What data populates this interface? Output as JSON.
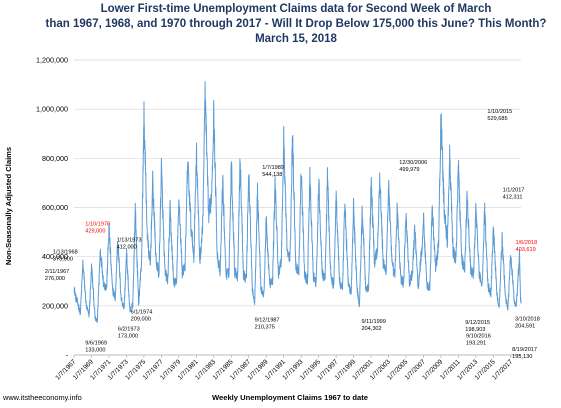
{
  "chart_data": {
    "type": "line",
    "title": [
      "Lower First-time Unemployment Claims data for Second Week of March",
      "than 1967, 1968, and 1970 through 2017 - Will It Drop Below 175,000 this June? This Month?",
      "March 15, 2018"
    ],
    "xlabel": "Weekly Unemployment Claims 1967 to date",
    "ylabel": "Non-Seasonally Adjusted Claims",
    "ylim": [
      0,
      1200000
    ],
    "yticks": [
      "-",
      "200,000",
      "400,000",
      "600,000",
      "800,000",
      "1,000,000",
      "1,200,000"
    ],
    "xticks": [
      "1/7/1967",
      "1/7/1969",
      "1/7/1971",
      "1/7/1973",
      "1/7/1975",
      "1/7/1977",
      "1/7/1979",
      "1/7/1981",
      "1/7/1983",
      "1/7/1985",
      "1/7/1987",
      "1/7/1989",
      "1/7/1991",
      "1/7/1993",
      "1/7/1995",
      "1/7/1997",
      "1/7/1999",
      "1/7/2001",
      "1/7/2003",
      "1/7/2005",
      "1/7/2007",
      "1/7/2009",
      "1/7/2011",
      "1/7/2013",
      "1/7/2015",
      "1/7/2017"
    ],
    "x_start": "1967-01-07",
    "x_end": "2018-03-10",
    "series_color": "#5b9bd5",
    "grid": "horizontal",
    "legend": "none",
    "annual_profile": [
      {
        "x": "1967-01-07",
        "y": 276000
      },
      {
        "x": "1967-04-01",
        "y": 230000
      },
      {
        "x": "1967-07-01",
        "y": 205000
      },
      {
        "x": "1967-10-01",
        "y": 170000
      },
      {
        "x": "1968-01-13",
        "y": 373000
      },
      {
        "x": "1968-06-01",
        "y": 200000
      },
      {
        "x": "1968-10-01",
        "y": 160000
      },
      {
        "x": "1969-01-11",
        "y": 360000
      },
      {
        "x": "1969-06-07",
        "y": 150000
      },
      {
        "x": "1969-09-06",
        "y": 133000
      },
      {
        "x": "1970-01-10",
        "y": 429000
      },
      {
        "x": "1970-06-01",
        "y": 290000
      },
      {
        "x": "1970-10-01",
        "y": 270000
      },
      {
        "x": "1971-01-09",
        "y": 520000
      },
      {
        "x": "1971-06-01",
        "y": 270000
      },
      {
        "x": "1971-10-01",
        "y": 230000
      },
      {
        "x": "1972-01-08",
        "y": 470000
      },
      {
        "x": "1972-06-01",
        "y": 230000
      },
      {
        "x": "1972-10-01",
        "y": 190000
      },
      {
        "x": "1973-01-13",
        "y": 412000
      },
      {
        "x": "1973-06-02",
        "y": 173000
      },
      {
        "x": "1973-10-01",
        "y": 210000
      },
      {
        "x": "1974-01-12",
        "y": 590000
      },
      {
        "x": "1974-06-01",
        "y": 209000
      },
      {
        "x": "1974-10-01",
        "y": 380000
      },
      {
        "x": "1975-01-11",
        "y": 970000
      },
      {
        "x": "1975-06-01",
        "y": 480000
      },
      {
        "x": "1975-10-01",
        "y": 360000
      },
      {
        "x": "1976-01-10",
        "y": 700000
      },
      {
        "x": "1976-06-01",
        "y": 380000
      },
      {
        "x": "1976-10-01",
        "y": 330000
      },
      {
        "x": "1977-01-08",
        "y": 760000
      },
      {
        "x": "1977-06-01",
        "y": 340000
      },
      {
        "x": "1977-10-01",
        "y": 300000
      },
      {
        "x": "1978-01-07",
        "y": 590000
      },
      {
        "x": "1978-06-01",
        "y": 300000
      },
      {
        "x": "1978-10-01",
        "y": 290000
      },
      {
        "x": "1979-01-13",
        "y": 640000
      },
      {
        "x": "1979-06-01",
        "y": 330000
      },
      {
        "x": "1979-10-01",
        "y": 370000
      },
      {
        "x": "1980-01-12",
        "y": 790000
      },
      {
        "x": "1980-06-01",
        "y": 520000
      },
      {
        "x": "1980-10-01",
        "y": 400000
      },
      {
        "x": "1981-01-10",
        "y": 840000
      },
      {
        "x": "1981-06-01",
        "y": 380000
      },
      {
        "x": "1981-10-01",
        "y": 520000
      },
      {
        "x": "1982-01-09",
        "y": 1070000
      },
      {
        "x": "1982-06-01",
        "y": 570000
      },
      {
        "x": "1982-10-01",
        "y": 640000
      },
      {
        "x": "1983-01-08",
        "y": 980000
      },
      {
        "x": "1983-06-01",
        "y": 410000
      },
      {
        "x": "1983-10-01",
        "y": 330000
      },
      {
        "x": "1984-01-14",
        "y": 710000
      },
      {
        "x": "1984-06-01",
        "y": 330000
      },
      {
        "x": "1984-10-01",
        "y": 330000
      },
      {
        "x": "1985-01-12",
        "y": 780000
      },
      {
        "x": "1985-06-01",
        "y": 340000
      },
      {
        "x": "1985-10-01",
        "y": 320000
      },
      {
        "x": "1986-01-11",
        "y": 800000
      },
      {
        "x": "1986-06-01",
        "y": 330000
      },
      {
        "x": "1986-10-01",
        "y": 310000
      },
      {
        "x": "1987-01-10",
        "y": 760000
      },
      {
        "x": "1987-06-01",
        "y": 280000
      },
      {
        "x": "1987-09-12",
        "y": 210375
      },
      {
        "x": "1988-01-09",
        "y": 660000
      },
      {
        "x": "1988-06-01",
        "y": 270000
      },
      {
        "x": "1988-10-01",
        "y": 240000
      },
      {
        "x": "1989-01-07",
        "y": 544138
      },
      {
        "x": "1989-06-01",
        "y": 290000
      },
      {
        "x": "1989-10-01",
        "y": 300000
      },
      {
        "x": "1990-01-13",
        "y": 700000
      },
      {
        "x": "1990-06-01",
        "y": 330000
      },
      {
        "x": "1990-10-01",
        "y": 380000
      },
      {
        "x": "1991-01-12",
        "y": 880000
      },
      {
        "x": "1991-06-01",
        "y": 420000
      },
      {
        "x": "1991-10-01",
        "y": 390000
      },
      {
        "x": "1992-01-11",
        "y": 890000
      },
      {
        "x": "1992-06-01",
        "y": 360000
      },
      {
        "x": "1992-10-01",
        "y": 340000
      },
      {
        "x": "1993-01-09",
        "y": 750000
      },
      {
        "x": "1993-06-01",
        "y": 330000
      },
      {
        "x": "1993-10-01",
        "y": 300000
      },
      {
        "x": "1994-01-08",
        "y": 720000
      },
      {
        "x": "1994-06-01",
        "y": 320000
      },
      {
        "x": "1994-10-01",
        "y": 290000
      },
      {
        "x": "1995-01-14",
        "y": 700000
      },
      {
        "x": "1995-06-01",
        "y": 340000
      },
      {
        "x": "1995-10-01",
        "y": 300000
      },
      {
        "x": "1996-01-13",
        "y": 720000
      },
      {
        "x": "1996-06-01",
        "y": 320000
      },
      {
        "x": "1996-10-01",
        "y": 280000
      },
      {
        "x": "1997-01-11",
        "y": 650000
      },
      {
        "x": "1997-06-01",
        "y": 300000
      },
      {
        "x": "1997-10-01",
        "y": 260000
      },
      {
        "x": "1998-01-10",
        "y": 620000
      },
      {
        "x": "1998-06-01",
        "y": 290000
      },
      {
        "x": "1998-10-01",
        "y": 250000
      },
      {
        "x": "1999-01-09",
        "y": 600000
      },
      {
        "x": "1999-06-01",
        "y": 270000
      },
      {
        "x": "1999-09-11",
        "y": 204302
      },
      {
        "x": "2000-01-08",
        "y": 590000
      },
      {
        "x": "2000-06-01",
        "y": 270000
      },
      {
        "x": "2000-10-01",
        "y": 280000
      },
      {
        "x": "2001-01-13",
        "y": 700000
      },
      {
        "x": "2001-06-01",
        "y": 380000
      },
      {
        "x": "2001-10-01",
        "y": 430000
      },
      {
        "x": "2002-01-12",
        "y": 730000
      },
      {
        "x": "2002-06-01",
        "y": 370000
      },
      {
        "x": "2002-10-01",
        "y": 340000
      },
      {
        "x": "2003-01-11",
        "y": 690000
      },
      {
        "x": "2003-06-01",
        "y": 370000
      },
      {
        "x": "2003-10-01",
        "y": 320000
      },
      {
        "x": "2004-01-10",
        "y": 600000
      },
      {
        "x": "2004-06-01",
        "y": 310000
      },
      {
        "x": "2004-10-01",
        "y": 290000
      },
      {
        "x": "2005-01-08",
        "y": 580000
      },
      {
        "x": "2005-06-01",
        "y": 290000
      },
      {
        "x": "2005-10-01",
        "y": 330000
      },
      {
        "x": "2006-01-14",
        "y": 520000
      },
      {
        "x": "2006-06-01",
        "y": 270000
      },
      {
        "x": "2006-12-30",
        "y": 499979
      },
      {
        "x": "2007-01-13",
        "y": 560000
      },
      {
        "x": "2007-06-01",
        "y": 280000
      },
      {
        "x": "2007-10-01",
        "y": 280000
      },
      {
        "x": "2008-01-12",
        "y": 600000
      },
      {
        "x": "2008-06-01",
        "y": 350000
      },
      {
        "x": "2008-10-01",
        "y": 450000
      },
      {
        "x": "2009-01-10",
        "y": 960000
      },
      {
        "x": "2009-06-01",
        "y": 580000
      },
      {
        "x": "2009-10-01",
        "y": 460000
      },
      {
        "x": "2010-01-09",
        "y": 800000
      },
      {
        "x": "2010-06-01",
        "y": 420000
      },
      {
        "x": "2010-10-01",
        "y": 390000
      },
      {
        "x": "2011-01-08",
        "y": 770000
      },
      {
        "x": "2011-06-01",
        "y": 390000
      },
      {
        "x": "2011-10-01",
        "y": 350000
      },
      {
        "x": "2012-01-07",
        "y": 650000
      },
      {
        "x": "2012-06-01",
        "y": 350000
      },
      {
        "x": "2012-10-01",
        "y": 320000
      },
      {
        "x": "2013-01-12",
        "y": 600000
      },
      {
        "x": "2013-06-01",
        "y": 320000
      },
      {
        "x": "2013-10-01",
        "y": 290000
      },
      {
        "x": "2014-01-11",
        "y": 590000
      },
      {
        "x": "2014-06-01",
        "y": 280000
      },
      {
        "x": "2014-10-01",
        "y": 250000
      },
      {
        "x": "2015-01-10",
        "y": 529685
      },
      {
        "x": "2015-06-01",
        "y": 250000
      },
      {
        "x": "2015-09-12",
        "y": 198903
      },
      {
        "x": "2016-01-09",
        "y": 470000
      },
      {
        "x": "2016-06-01",
        "y": 230000
      },
      {
        "x": "2016-09-10",
        "y": 193291
      },
      {
        "x": "2017-01-07",
        "y": 412311
      },
      {
        "x": "2017-06-01",
        "y": 220000
      },
      {
        "x": "2017-08-19",
        "y": 195130
      },
      {
        "x": "2018-01-06",
        "y": 403619
      },
      {
        "x": "2018-02-10",
        "y": 260000
      },
      {
        "x": "2018-03-10",
        "y": 204591
      }
    ],
    "annotations": [
      {
        "date": "2/11/1967",
        "value": "276,000",
        "x": "1967-02-11",
        "y": 276000,
        "color": "black"
      },
      {
        "date": "1/13/1968",
        "value": "373,000",
        "x": "1968-01-13",
        "y": 373000,
        "color": "black"
      },
      {
        "date": "9/6/1969",
        "value": "133,000",
        "x": "1969-09-06",
        "y": 133000,
        "color": "black"
      },
      {
        "date": "1/10/1970",
        "value": "429,000",
        "x": "1970-01-10",
        "y": 429000,
        "color": "red"
      },
      {
        "date": "1/13/1973",
        "value": "412,000",
        "x": "1973-01-13",
        "y": 412000,
        "color": "black"
      },
      {
        "date": "6/2/1973",
        "value": "173,000",
        "x": "1973-06-02",
        "y": 173000,
        "color": "black"
      },
      {
        "date": "6/1/1974",
        "value": "209,000",
        "x": "1974-06-01",
        "y": 209000,
        "color": "black"
      },
      {
        "date": "9/12/1987",
        "value": "210,375",
        "x": "1987-09-12",
        "y": 210375,
        "color": "black"
      },
      {
        "date": "1/7/1989",
        "value": "544,138",
        "x": "1989-01-07",
        "y": 544138,
        "color": "black"
      },
      {
        "date": "9/11/1999",
        "value": "204,302",
        "x": "1999-09-11",
        "y": 204302,
        "color": "black"
      },
      {
        "date": "12/30/2006",
        "value": "499,979",
        "x": "2006-12-30",
        "y": 499979,
        "color": "black"
      },
      {
        "date": "1/10/2015",
        "value": "529,685",
        "x": "2015-01-10",
        "y": 529685,
        "color": "black"
      },
      {
        "date": "9/12/2015",
        "value": "198,903",
        "x": "2015-09-12",
        "y": 198903,
        "color": "black"
      },
      {
        "date": "9/10/2016",
        "value": "193,291",
        "x": "2016-09-10",
        "y": 193291,
        "color": "black"
      },
      {
        "date": "1/1/2017",
        "value": "412,311",
        "x": "2017-01-01",
        "y": 412311,
        "color": "black"
      },
      {
        "date": "8/19/2017",
        "value": "195,130",
        "x": "2017-08-19",
        "y": 195130,
        "color": "black"
      },
      {
        "date": "1/6/2018",
        "value": "403,619",
        "x": "2018-01-06",
        "y": 403619,
        "color": "red"
      },
      {
        "date": "3/10/2018",
        "value": "204,591",
        "x": "2018-03-10",
        "y": 204591,
        "color": "black"
      }
    ]
  },
  "footer": {
    "source": "www.itstheeconomy.info"
  }
}
